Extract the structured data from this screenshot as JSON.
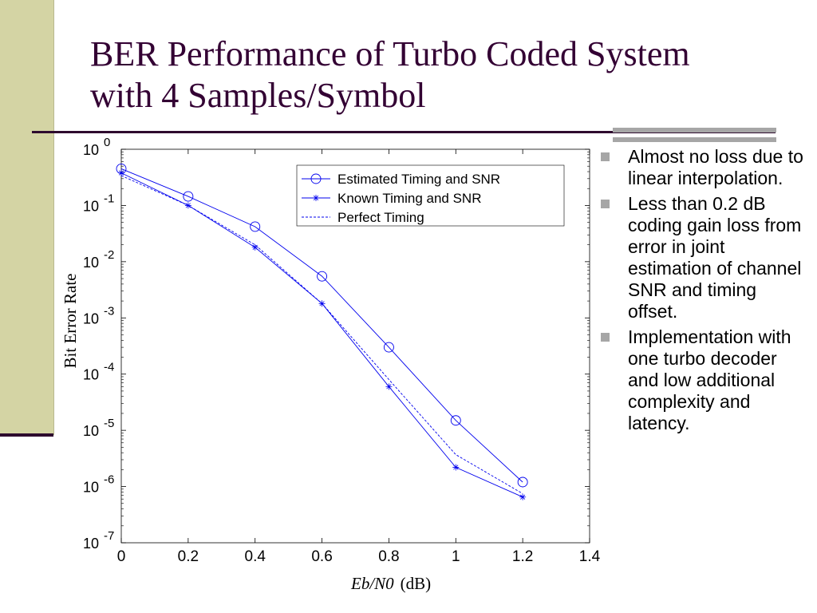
{
  "slide": {
    "title_line1": "BER Performance of Turbo Coded System",
    "title_line2": "with 4 Samples/Symbol",
    "accent_color": "#330033",
    "band_color": "#d4d4a4"
  },
  "bullets": [
    {
      "text": "Almost no loss due to linear interpolation."
    },
    {
      "text": "Less than 0.2 dB coding gain loss from error in joint estimation of channel SNR and timing offset."
    },
    {
      "text": "Implementation with one turbo decoder and low additional complexity and latency."
    }
  ],
  "chart_data": {
    "type": "line",
    "title": "",
    "xlabel_italic": "Eb/N0",
    "xlabel_suffix": "(dB)",
    "ylabel": "Bit Error Rate",
    "xlim": [
      0,
      1.4
    ],
    "x_ticks": [
      "0",
      "0.2",
      "0.4",
      "0.6",
      "0.8",
      "1",
      "1.2",
      "1.4"
    ],
    "y_scale": "log",
    "ylim_exponent": [
      -7,
      0
    ],
    "y_tick_base": "10",
    "y_tick_exponents": [
      "0",
      "-1",
      "-2",
      "-3",
      "-4",
      "-5",
      "-6",
      "-7"
    ],
    "legend_position": "top-right",
    "series_color": "#0000ee",
    "series": [
      {
        "name": "Estimated Timing and SNR",
        "marker": "circle",
        "line": "solid",
        "x": [
          0,
          0.2,
          0.4,
          0.6,
          0.8,
          1.0,
          1.2
        ],
        "y": [
          0.45,
          0.145,
          0.042,
          0.0055,
          0.0003,
          1.5e-05,
          1.2e-06
        ]
      },
      {
        "name": "Known Timing and SNR",
        "marker": "star",
        "line": "solid",
        "x": [
          0,
          0.2,
          0.4,
          0.6,
          0.8,
          1.0,
          1.2
        ],
        "y": [
          0.38,
          0.1,
          0.018,
          0.0018,
          6e-05,
          2.2e-06,
          6.5e-07
        ]
      },
      {
        "name": "Perfect Timing",
        "marker": "none",
        "line": "dashed",
        "x": [
          0,
          0.2,
          0.4,
          0.6,
          0.8,
          1.0,
          1.2
        ],
        "y": [
          0.34,
          0.1,
          0.02,
          0.0018,
          8e-05,
          3.7e-06,
          7.5e-07
        ]
      }
    ]
  }
}
